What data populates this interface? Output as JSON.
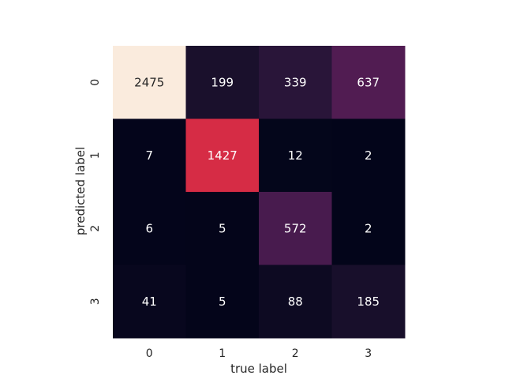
{
  "chart_data": {
    "type": "heatmap",
    "title": "",
    "xlabel": "true label",
    "ylabel": "predicted label",
    "x_categories": [
      "0",
      "1",
      "2",
      "3"
    ],
    "y_categories": [
      "0",
      "1",
      "2",
      "3"
    ],
    "values": [
      [
        2475,
        199,
        339,
        637
      ],
      [
        7,
        1427,
        12,
        2
      ],
      [
        6,
        5,
        572,
        2
      ],
      [
        41,
        5,
        88,
        185
      ]
    ],
    "colormap": "rocket",
    "color_range": [
      0,
      2475
    ],
    "colorbar": false,
    "annotations": true,
    "grid": false
  }
}
